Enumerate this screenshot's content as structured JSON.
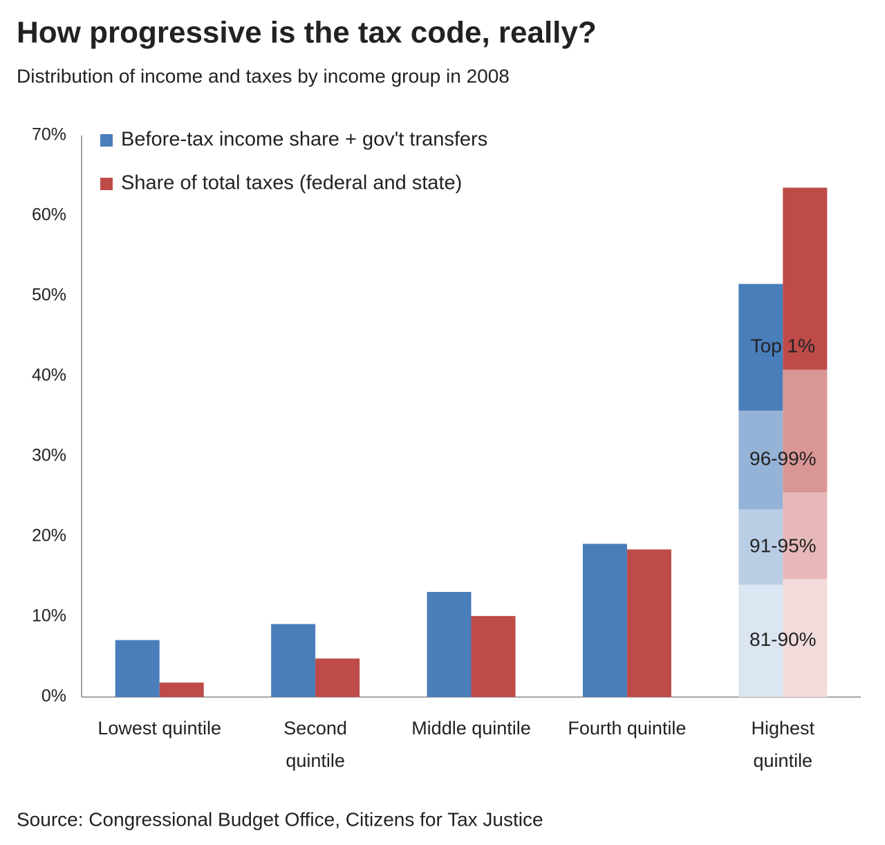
{
  "chart_data": {
    "type": "bar",
    "title": "How progressive is the tax code, really?",
    "subtitle": "Distribution of income and taxes by income group in 2008",
    "source": "Source: Congressional Budget Office, Citizens for Tax Justice",
    "categories": [
      "Lowest quintile",
      "Second quintile",
      "Middle quintile",
      "Fourth quintile",
      "Highest quintile"
    ],
    "series": [
      {
        "name": "Before-tax income share + gov't transfers",
        "color": "#4a7ebb",
        "values": [
          7.1,
          9.1,
          13.1,
          19.1,
          null
        ],
        "segments": [
          14.0,
          9.4,
          12.3,
          15.8
        ],
        "segment_colors": [
          "#dce6f2",
          "#b9cde5",
          "#95b3d7",
          "#4a7ebb"
        ]
      },
      {
        "name": "Share of total taxes (federal and state)",
        "color": "#be4b48",
        "values": [
          1.8,
          4.8,
          10.1,
          18.4,
          null
        ],
        "segments": [
          14.7,
          10.8,
          15.3,
          22.7
        ],
        "segment_colors": [
          "#f2dcdb",
          "#e6b9b8",
          "#d99694",
          "#be4b48"
        ]
      }
    ],
    "segment_labels": [
      "81-90%",
      "91-95%",
      "96-99%",
      "Top 1%"
    ],
    "ylim": [
      0,
      70
    ],
    "yticks": [
      {
        "value": 0,
        "label": "0%"
      },
      {
        "value": 10,
        "label": "10%"
      },
      {
        "value": 20,
        "label": "20%"
      },
      {
        "value": 30,
        "label": "30%"
      },
      {
        "value": 40,
        "label": "40%"
      },
      {
        "value": 50,
        "label": "50%"
      },
      {
        "value": 60,
        "label": "60%"
      },
      {
        "value": 70,
        "label": "70%"
      }
    ],
    "grid": false,
    "legend": "top-left"
  }
}
